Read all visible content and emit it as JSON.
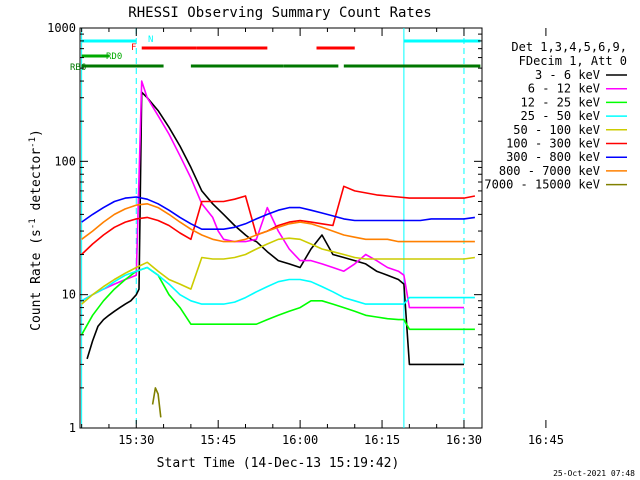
{
  "chart_data": {
    "type": "line",
    "title": "RHESSI Observing Summary Count Rates",
    "xlabel": "Start Time (14-Dec-13 15:19:42)",
    "ylabel_prefix": "Count Rate (s",
    "ylabel_sup1": "-1",
    "ylabel_mid": " detector",
    "ylabel_sup2": "-1",
    "ylabel_suffix": ")",
    "ylabel": "Count Rate (s-1 detector-1)",
    "yscale": "log",
    "ylim": [
      1,
      1000
    ],
    "xlim_minutes_after_1520": [
      0,
      73
    ],
    "x_ticks": [
      "15:30",
      "15:45",
      "16:00",
      "16:15",
      "16:30",
      "16:45"
    ],
    "y_ticks": [
      "1",
      "10",
      "100",
      "1000"
    ],
    "timestamp": "25-Oct-2021 07:48",
    "legend": {
      "header": [
        "Det 1,3,4,5,6,9,",
        "FDecim 1, Att 0"
      ],
      "placement": "right"
    },
    "state_bars": [
      {
        "label": "N",
        "color": "#00ffff",
        "segments": [
          [
            0,
            10
          ],
          [
            59,
            73
          ]
        ]
      },
      {
        "label": "F",
        "color": "#ff0000",
        "segments": [
          [
            11,
            21
          ],
          [
            21,
            34
          ],
          [
            43,
            50
          ]
        ]
      },
      {
        "label": "RD0",
        "color": "#00aa00",
        "segments": [
          [
            0,
            5
          ]
        ]
      },
      {
        "label": "RB6",
        "color": "#007700",
        "segments": [
          [
            0,
            15
          ],
          [
            20,
            37
          ],
          [
            37,
            47
          ],
          [
            48,
            73
          ]
        ]
      }
    ],
    "markers": {
      "solid": [
        0,
        59
      ],
      "dashed": [
        10,
        70
      ]
    },
    "series": [
      {
        "name": "3 - 6 keV",
        "color": "#000000",
        "x": [
          1,
          2,
          3,
          4,
          5,
          6,
          7,
          8,
          9,
          10,
          10.5,
          11,
          12,
          14,
          16,
          18,
          20,
          22,
          24,
          26,
          28,
          30,
          31,
          32,
          34,
          36,
          38,
          40,
          42,
          44,
          46,
          48,
          50,
          52,
          54,
          56,
          58,
          59,
          60,
          62,
          64,
          66,
          68,
          70
        ],
        "values": [
          3.3,
          4.5,
          5.8,
          6.5,
          7.0,
          7.5,
          8.0,
          8.5,
          9.0,
          10.0,
          11.0,
          330,
          300,
          240,
          180,
          130,
          90,
          60,
          48,
          40,
          33,
          28,
          26,
          25,
          21,
          18,
          17,
          16,
          22,
          28,
          20,
          19,
          18,
          17,
          15,
          14,
          13,
          12,
          3.0,
          3.0,
          3.0,
          3.0,
          3.0,
          3.0
        ]
      },
      {
        "name": "6 - 12 keV",
        "color": "#ff00ff",
        "x": [
          0,
          2,
          4,
          6,
          8,
          10,
          11,
          12,
          14,
          16,
          18,
          20,
          22,
          24,
          25,
          26,
          28,
          30,
          32,
          34,
          36,
          38,
          40,
          42,
          44,
          46,
          48,
          50,
          52,
          54,
          56,
          58,
          59,
          60,
          62,
          64,
          66,
          68,
          70
        ],
        "values": [
          9.0,
          10.0,
          11.0,
          12.0,
          13.0,
          14.0,
          400,
          300,
          220,
          160,
          110,
          75,
          48,
          38,
          30,
          26,
          25,
          25,
          26,
          45,
          30,
          22,
          18,
          18,
          17,
          16,
          15,
          17,
          20,
          18,
          16,
          15,
          14,
          8.0,
          8.0,
          8.0,
          8.0,
          8.0,
          8.0
        ]
      },
      {
        "name": "12 - 25 keV",
        "color": "#00ff00",
        "x": [
          0,
          2,
          4,
          6,
          8,
          10,
          12,
          14,
          16,
          18,
          20,
          22,
          24,
          26,
          28,
          30,
          32,
          34,
          36,
          38,
          40,
          42,
          44,
          46,
          48,
          50,
          52,
          54,
          56,
          58,
          59,
          60,
          62,
          64,
          66,
          68,
          70,
          72
        ],
        "values": [
          5.0,
          7.0,
          9.0,
          11.0,
          13.0,
          15.0,
          16.0,
          14.0,
          10.0,
          8.0,
          6.0,
          6.0,
          6.0,
          6.0,
          6.0,
          6.0,
          6.0,
          6.5,
          7.0,
          7.5,
          8.0,
          9.0,
          9.0,
          8.5,
          8.0,
          7.5,
          7.0,
          6.8,
          6.6,
          6.5,
          6.5,
          5.5,
          5.5,
          5.5,
          5.5,
          5.5,
          5.5,
          5.5
        ]
      },
      {
        "name": "25 - 50 keV",
        "color": "#00ffff",
        "x": [
          0,
          2,
          4,
          6,
          8,
          10,
          12,
          14,
          16,
          18,
          20,
          22,
          24,
          26,
          28,
          30,
          32,
          34,
          36,
          38,
          40,
          42,
          44,
          46,
          48,
          50,
          52,
          54,
          56,
          58,
          59,
          60,
          62,
          64,
          66,
          68,
          70,
          72
        ],
        "values": [
          9.0,
          10.0,
          11.0,
          12.5,
          14.0,
          15.0,
          16.0,
          14.0,
          12.0,
          10.0,
          9.0,
          8.5,
          8.5,
          8.5,
          8.8,
          9.5,
          10.5,
          11.5,
          12.5,
          13.0,
          13.0,
          12.5,
          11.5,
          10.5,
          9.5,
          9.0,
          8.5,
          8.5,
          8.5,
          8.5,
          8.5,
          9.5,
          9.5,
          9.5,
          9.5,
          9.5,
          9.5,
          9.5
        ]
      },
      {
        "name": "50 - 100 keV",
        "color": "#cccc00",
        "x": [
          0,
          2,
          4,
          6,
          8,
          10,
          12,
          14,
          16,
          18,
          20,
          22,
          24,
          26,
          28,
          30,
          32,
          34,
          36,
          38,
          40,
          42,
          44,
          46,
          48,
          50,
          52,
          54,
          56,
          58,
          59,
          60,
          62,
          64,
          66,
          68,
          70,
          72
        ],
        "values": [
          8.5,
          10.0,
          11.5,
          13.0,
          14.5,
          16.0,
          17.5,
          15.0,
          13.0,
          12.0,
          11.0,
          19.0,
          18.5,
          18.5,
          19.0,
          20.0,
          22.0,
          24.0,
          26.0,
          26.5,
          26.0,
          24.0,
          22.0,
          21.0,
          20.0,
          19.0,
          18.5,
          18.5,
          18.5,
          18.5,
          18.5,
          18.5,
          18.5,
          18.5,
          18.5,
          18.5,
          18.5,
          19.0
        ]
      },
      {
        "name": "100 - 300 keV",
        "color": "#ff0000",
        "x": [
          0,
          2,
          4,
          6,
          8,
          10,
          12,
          14,
          16,
          18,
          20,
          22,
          24,
          26,
          28,
          30,
          32,
          34,
          36,
          38,
          40,
          42,
          44,
          46,
          48,
          50,
          52,
          54,
          56,
          58,
          60,
          62,
          64,
          66,
          68,
          70,
          72
        ],
        "values": [
          20,
          24,
          28,
          32,
          35,
          37,
          38,
          36,
          33,
          29,
          26,
          50,
          50,
          50,
          52,
          55,
          28,
          30,
          33,
          35,
          36,
          35,
          34,
          33,
          65,
          60,
          58,
          56,
          55,
          54,
          53,
          53,
          53,
          53,
          53,
          53,
          55
        ]
      },
      {
        "name": "300 - 800 keV",
        "color": "#0000ff",
        "x": [
          0,
          2,
          4,
          6,
          8,
          10,
          12,
          14,
          16,
          18,
          20,
          22,
          24,
          26,
          28,
          30,
          32,
          34,
          36,
          38,
          40,
          42,
          44,
          46,
          48,
          50,
          52,
          54,
          56,
          58,
          60,
          62,
          64,
          66,
          68,
          70,
          72
        ],
        "values": [
          35,
          40,
          45,
          50,
          53,
          54,
          52,
          48,
          43,
          38,
          34,
          31,
          31,
          31,
          32,
          34,
          37,
          40,
          43,
          45,
          45,
          43,
          41,
          39,
          37,
          36,
          36,
          36,
          36,
          36,
          36,
          36,
          37,
          37,
          37,
          37,
          38
        ]
      },
      {
        "name": "800 - 7000 keV",
        "color": "#ff8000",
        "x": [
          0,
          2,
          4,
          6,
          8,
          10,
          12,
          14,
          16,
          18,
          20,
          22,
          24,
          26,
          28,
          30,
          32,
          34,
          36,
          38,
          40,
          42,
          44,
          46,
          48,
          50,
          52,
          54,
          56,
          58,
          60,
          62,
          64,
          66,
          68,
          70,
          72
        ],
        "values": [
          26,
          30,
          35,
          40,
          44,
          47,
          48,
          45,
          40,
          35,
          31,
          28,
          26,
          25,
          25,
          26,
          28,
          30,
          32,
          34,
          35,
          34,
          32,
          30,
          28,
          27,
          26,
          26,
          26,
          25,
          25,
          25,
          25,
          25,
          25,
          25,
          25
        ]
      },
      {
        "name": "7000 - 15000 keV",
        "color": "#808000",
        "x": [
          13,
          13.5,
          14,
          14.5
        ],
        "values": [
          1.5,
          2.0,
          1.8,
          1.2
        ]
      }
    ]
  }
}
